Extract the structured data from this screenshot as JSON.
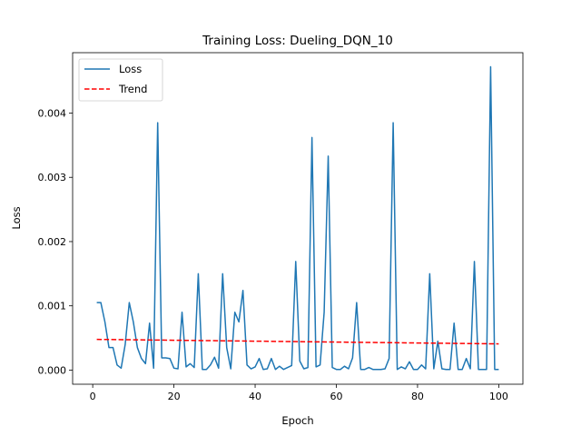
{
  "chart_data": {
    "type": "line",
    "title": "Training Loss: Dueling_DQN_10",
    "xlabel": "Epoch",
    "ylabel": "Loss",
    "xlim": [
      -4.95,
      105.95
    ],
    "ylim": [
      -0.00022,
      0.00494
    ],
    "xticks": [
      0,
      20,
      40,
      60,
      80,
      100
    ],
    "xtick_labels": [
      "0",
      "20",
      "40",
      "60",
      "80",
      "100"
    ],
    "yticks": [
      0.0,
      0.001,
      0.002,
      0.003,
      0.004
    ],
    "ytick_labels": [
      "0.000",
      "0.001",
      "0.002",
      "0.003",
      "0.004"
    ],
    "grid": false,
    "legend": "upper-left",
    "series": [
      {
        "name": "Loss",
        "style": "solid",
        "color": "#1f77b4",
        "x": [
          1,
          2,
          3,
          4,
          5,
          6,
          7,
          8,
          9,
          10,
          11,
          12,
          13,
          14,
          15,
          16,
          17,
          18,
          19,
          20,
          21,
          22,
          23,
          24,
          25,
          26,
          27,
          28,
          29,
          30,
          31,
          32,
          33,
          34,
          35,
          36,
          37,
          38,
          39,
          40,
          41,
          42,
          43,
          44,
          45,
          46,
          47,
          48,
          49,
          50,
          51,
          52,
          53,
          54,
          55,
          56,
          57,
          58,
          59,
          60,
          61,
          62,
          63,
          64,
          65,
          66,
          67,
          68,
          69,
          70,
          71,
          72,
          73,
          74,
          75,
          76,
          77,
          78,
          79,
          80,
          81,
          82,
          83,
          84,
          85,
          86,
          87,
          88,
          89,
          90,
          91,
          92,
          93,
          94,
          95,
          96,
          97,
          98,
          99,
          100
        ],
        "y": [
          0.00105,
          0.00105,
          0.00075,
          0.00035,
          0.00035,
          8e-05,
          3e-05,
          0.0004,
          0.00105,
          0.00075,
          0.00035,
          0.00018,
          0.0001,
          0.00073,
          3e-05,
          0.00385,
          0.00019,
          0.00019,
          0.00018,
          3e-05,
          2e-05,
          0.0009,
          5e-05,
          0.0001,
          4e-05,
          0.0015,
          1e-05,
          1e-05,
          8e-05,
          0.0002,
          3e-05,
          0.0015,
          0.00035,
          2e-05,
          0.0009,
          0.00075,
          0.00124,
          8e-05,
          2e-05,
          5e-05,
          0.00018,
          1e-05,
          2e-05,
          0.00018,
          1e-05,
          6e-05,
          1e-05,
          4e-05,
          7e-05,
          0.00169,
          0.00014,
          2e-05,
          4e-05,
          0.00362,
          5e-05,
          8e-05,
          0.0009,
          0.00333,
          4e-05,
          1e-05,
          1e-05,
          6e-05,
          2e-05,
          0.00019,
          0.00105,
          1e-05,
          1e-05,
          4e-05,
          1e-05,
          1e-05,
          1e-05,
          2e-05,
          0.00018,
          0.00385,
          1e-05,
          5e-05,
          2e-05,
          0.00013,
          1e-05,
          1e-05,
          8e-05,
          2e-05,
          0.0015,
          2e-05,
          0.00045,
          2e-05,
          1e-05,
          1e-05,
          0.00073,
          1e-05,
          1e-05,
          0.00018,
          2e-05,
          0.00169,
          1e-05,
          1e-05,
          1e-05,
          0.00472,
          1e-05,
          1e-05
        ]
      },
      {
        "name": "Trend",
        "style": "dashed",
        "color": "#ff0000",
        "x": [
          1,
          100
        ],
        "y": [
          0.000478,
          0.000408
        ]
      }
    ]
  }
}
